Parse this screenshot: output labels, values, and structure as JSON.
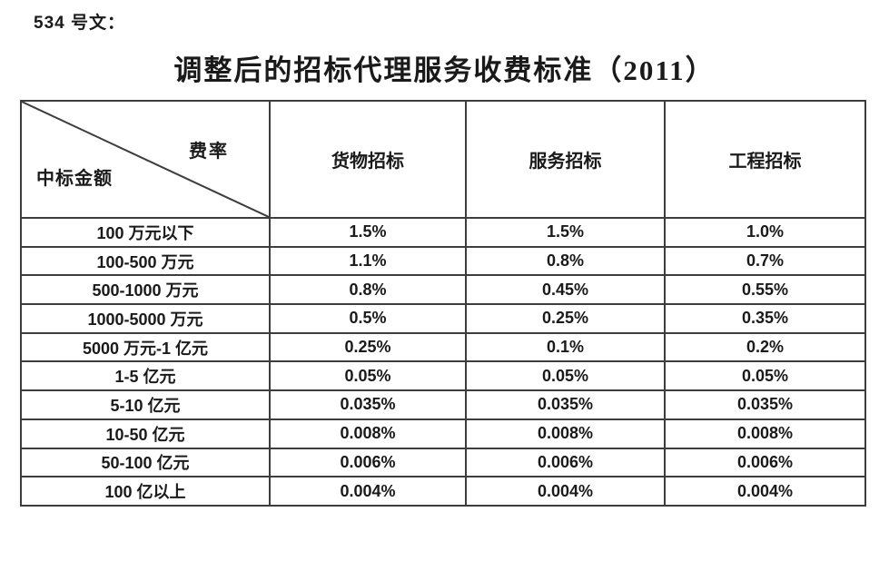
{
  "page": {
    "doc_label": "534 号文：",
    "title": "调整后的招标代理服务收费标准（2011）"
  },
  "table": {
    "corner": {
      "top_right": "费率",
      "bottom_left": "中标金额"
    },
    "columns": [
      "货物招标",
      "服务招标",
      "工程招标"
    ],
    "rows": [
      {
        "label": "100 万元以下",
        "values": [
          "1.5%",
          "1.5%",
          "1.0%"
        ]
      },
      {
        "label": "100-500 万元",
        "values": [
          "1.1%",
          "0.8%",
          "0.7%"
        ]
      },
      {
        "label": "500-1000 万元",
        "values": [
          "0.8%",
          "0.45%",
          "0.55%"
        ]
      },
      {
        "label": "1000-5000 万元",
        "values": [
          "0.5%",
          "0.25%",
          "0.35%"
        ]
      },
      {
        "label": "5000 万元-1 亿元",
        "values": [
          "0.25%",
          "0.1%",
          "0.2%"
        ]
      },
      {
        "label": "1-5 亿元",
        "values": [
          "0.05%",
          "0.05%",
          "0.05%"
        ]
      },
      {
        "label": "5-10 亿元",
        "values": [
          "0.035%",
          "0.035%",
          "0.035%"
        ]
      },
      {
        "label": "10-50 亿元",
        "values": [
          "0.008%",
          "0.008%",
          "0.008%"
        ]
      },
      {
        "label": "50-100 亿元",
        "values": [
          "0.006%",
          "0.006%",
          "0.006%"
        ]
      },
      {
        "label": "100 亿以上",
        "values": [
          "0.004%",
          "0.004%",
          "0.004%"
        ]
      }
    ]
  },
  "colors": {
    "text": "#1a1a1a",
    "border": "#3d3d3d",
    "background": "#ffffff"
  }
}
